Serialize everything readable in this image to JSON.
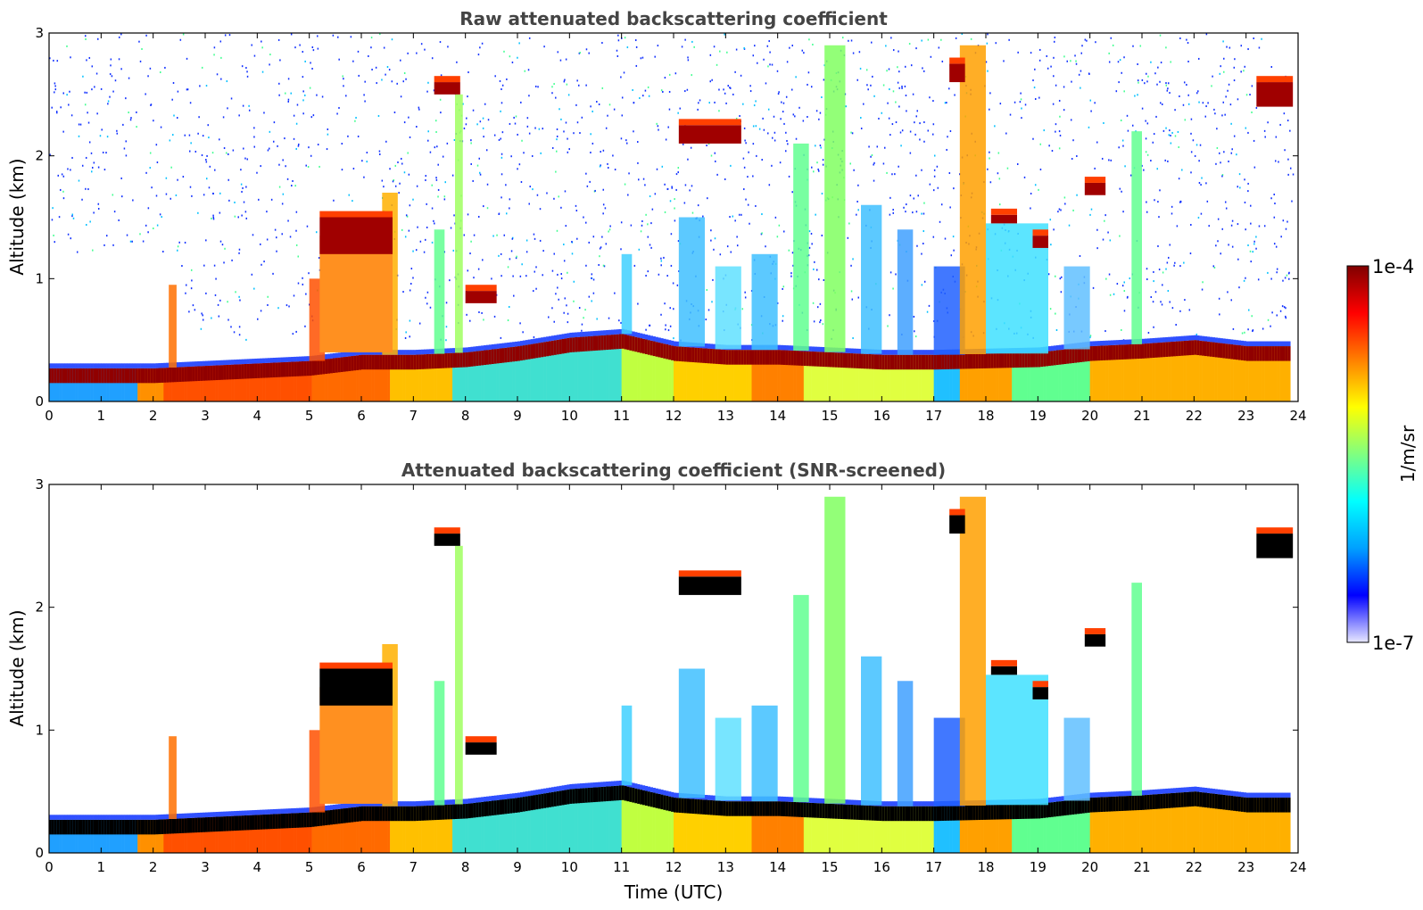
{
  "chart_data": [
    {
      "type": "heatmap",
      "title": "Raw attenuated backscattering coefficient",
      "xlabel": "",
      "ylabel": "Altitude (km)",
      "xlim": [
        0,
        24
      ],
      "ylim": [
        0,
        3
      ],
      "xticks": [
        "0",
        "1",
        "2",
        "3",
        "4",
        "5",
        "6",
        "7",
        "8",
        "9",
        "10",
        "11",
        "12",
        "13",
        "14",
        "15",
        "16",
        "17",
        "18",
        "19",
        "20",
        "21",
        "22",
        "23",
        "24"
      ],
      "yticks": [
        "0",
        "1",
        "2",
        "3"
      ],
      "colormap": "jet",
      "log_scale": true,
      "features": {
        "boundary_layer_top_km": [
          [
            0,
            0.27
          ],
          [
            2,
            0.27
          ],
          [
            3,
            0.29
          ],
          [
            5,
            0.33
          ],
          [
            6,
            0.38
          ],
          [
            7,
            0.38
          ],
          [
            8,
            0.4
          ],
          [
            9,
            0.45
          ],
          [
            10,
            0.52
          ],
          [
            11,
            0.55
          ],
          [
            12,
            0.45
          ],
          [
            13,
            0.42
          ],
          [
            14,
            0.42
          ],
          [
            15,
            0.4
          ],
          [
            16,
            0.38
          ],
          [
            17,
            0.38
          ],
          [
            19,
            0.4
          ],
          [
            20,
            0.45
          ],
          [
            21,
            0.47
          ],
          [
            22,
            0.5
          ],
          [
            23,
            0.45
          ],
          [
            23.8,
            0.45
          ]
        ],
        "clouds": [
          {
            "t0": 5.2,
            "t1": 6.6,
            "z0": 1.2,
            "z1": 1.5
          },
          {
            "t0": 7.4,
            "t1": 7.9,
            "z0": 2.5,
            "z1": 2.6
          },
          {
            "t0": 8.0,
            "t1": 8.6,
            "z0": 0.8,
            "z1": 0.9
          },
          {
            "t0": 12.1,
            "t1": 13.3,
            "z0": 2.1,
            "z1": 2.25
          },
          {
            "t0": 17.3,
            "t1": 17.6,
            "z0": 2.6,
            "z1": 2.75
          },
          {
            "t0": 18.1,
            "t1": 18.6,
            "z0": 1.45,
            "z1": 1.52
          },
          {
            "t0": 18.9,
            "t1": 19.2,
            "z0": 1.25,
            "z1": 1.35
          },
          {
            "t0": 19.9,
            "t1": 20.3,
            "z0": 1.68,
            "z1": 1.78
          },
          {
            "t0": 23.2,
            "t1": 23.9,
            "z0": 2.4,
            "z1": 2.6
          }
        ]
      }
    },
    {
      "type": "heatmap",
      "title": "Attenuated backscattering coefficient (SNR-screened)",
      "xlabel": "Time (UTC)",
      "ylabel": "Altitude (km)",
      "xlim": [
        0,
        24
      ],
      "ylim": [
        0,
        3
      ],
      "xticks": [
        "0",
        "1",
        "2",
        "3",
        "4",
        "5",
        "6",
        "7",
        "8",
        "9",
        "10",
        "11",
        "12",
        "13",
        "14",
        "15",
        "16",
        "17",
        "18",
        "19",
        "20",
        "21",
        "22",
        "23",
        "24"
      ],
      "yticks": [
        "0",
        "1",
        "2",
        "3"
      ],
      "colormap": "jet",
      "log_scale": true,
      "screened": true
    }
  ],
  "colorbar": {
    "label": "1/m/sr",
    "max_label": "1e-4",
    "min_label": "1e-7",
    "colors": [
      "#e8e8ff",
      "#0000ff",
      "#00a0ff",
      "#00ffff",
      "#80ff80",
      "#ffff00",
      "#ff8000",
      "#ff0000",
      "#800000"
    ]
  }
}
